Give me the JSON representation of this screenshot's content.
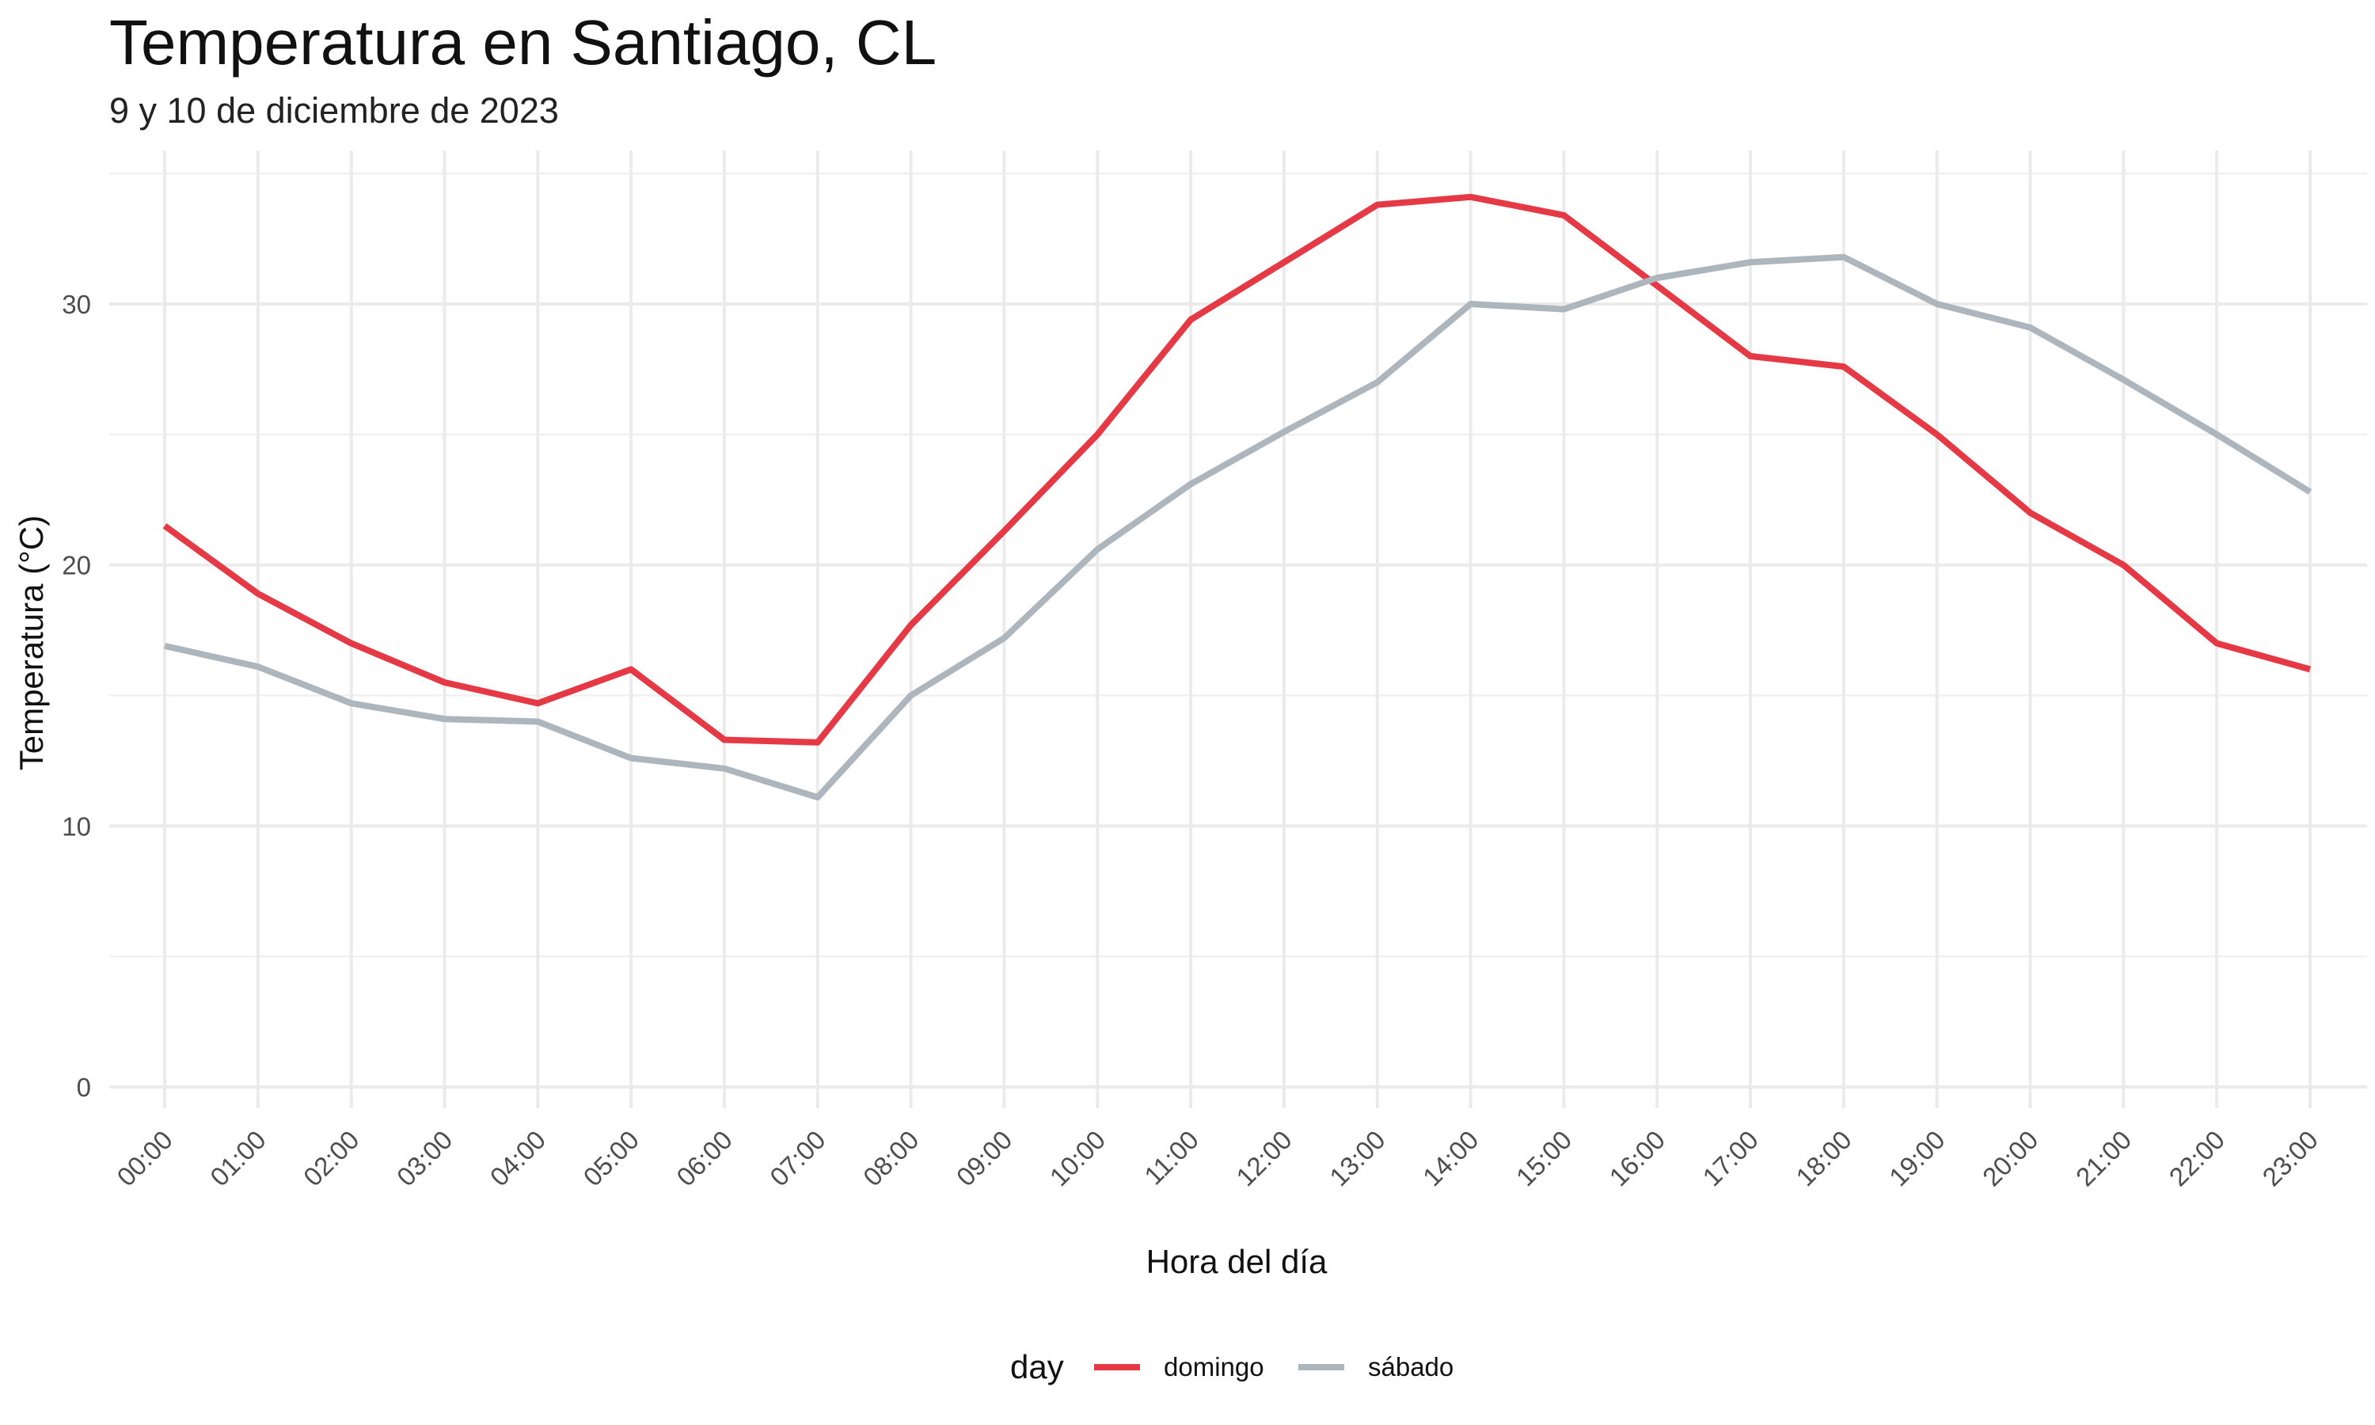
{
  "chart_data": {
    "type": "line",
    "title": "Temperatura en Santiago, CL",
    "subtitle": "9 y 10 de diciembre de 2023",
    "xlabel": "Hora del día",
    "ylabel": "Temperatura (°C)",
    "categories": [
      "00:00",
      "01:00",
      "02:00",
      "03:00",
      "04:00",
      "05:00",
      "06:00",
      "07:00",
      "08:00",
      "09:00",
      "10:00",
      "11:00",
      "12:00",
      "13:00",
      "14:00",
      "15:00",
      "16:00",
      "17:00",
      "18:00",
      "19:00",
      "20:00",
      "21:00",
      "22:00",
      "23:00"
    ],
    "ylim": [
      -1,
      35.5
    ],
    "yticks": [
      0,
      10,
      20,
      30
    ],
    "grid": true,
    "legend": {
      "title": "day",
      "position": "bottom"
    },
    "series": [
      {
        "name": "domingo",
        "color": "#E63946",
        "values": [
          21.5,
          18.9,
          17.0,
          15.5,
          14.7,
          16.0,
          13.3,
          13.2,
          17.7,
          21.3,
          25.0,
          29.4,
          31.6,
          33.8,
          34.1,
          33.4,
          30.7,
          28.0,
          27.6,
          25.0,
          22.0,
          20.0,
          17.0,
          16.0
        ]
      },
      {
        "name": "sábado",
        "color": "#ADB5BD",
        "values": [
          16.9,
          16.1,
          14.7,
          14.1,
          14.0,
          12.6,
          12.2,
          11.1,
          15.0,
          17.2,
          20.6,
          23.1,
          25.1,
          27.0,
          30.0,
          29.8,
          31.0,
          31.6,
          31.8,
          30.0,
          29.1,
          27.1,
          25.0,
          22.8
        ]
      }
    ]
  }
}
